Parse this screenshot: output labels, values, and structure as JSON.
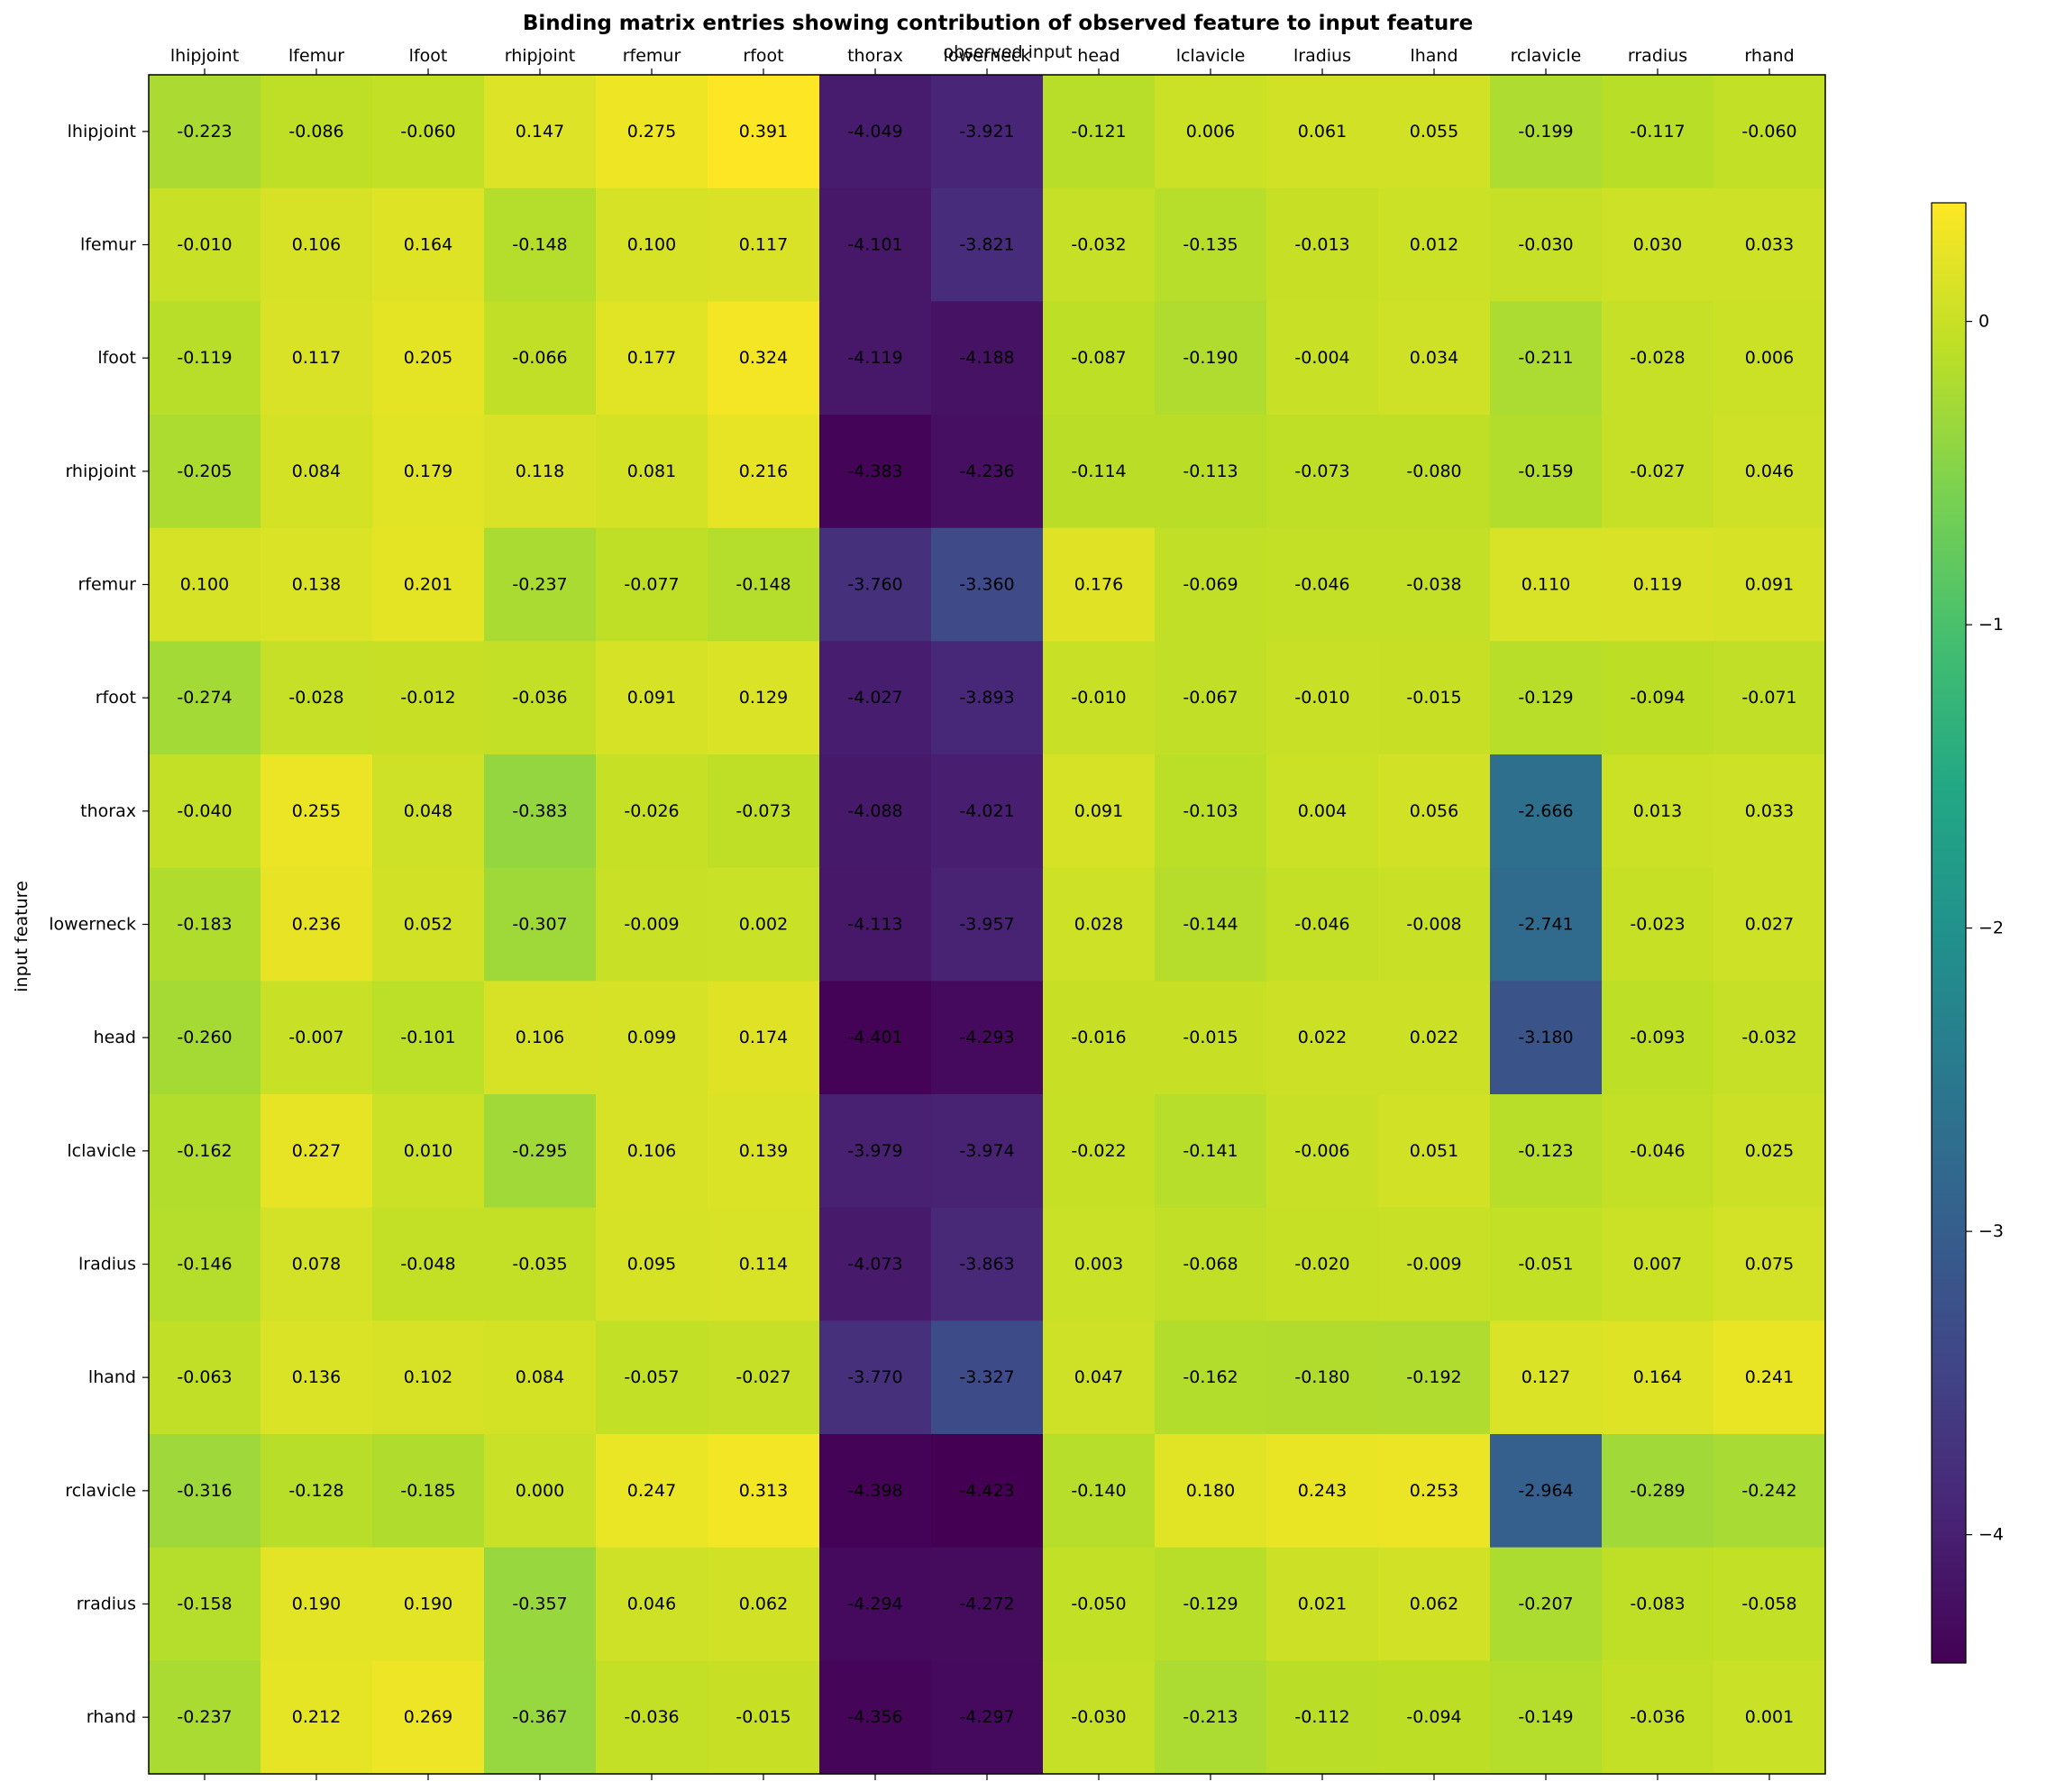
{
  "chart_data": {
    "type": "heatmap",
    "title": "Binding matrix entries showing contribution of observed feature to input feature",
    "xlabel": "observed input",
    "ylabel": "input feature",
    "x_categories": [
      "lhipjoint",
      "lfemur",
      "lfoot",
      "rhipjoint",
      "rfemur",
      "rfoot",
      "thorax",
      "lowerneck",
      "head",
      "lclavicle",
      "lradius",
      "lhand",
      "rclavicle",
      "rradius",
      "rhand"
    ],
    "y_categories": [
      "lhipjoint",
      "lfemur",
      "lfoot",
      "rhipjoint",
      "rfemur",
      "rfoot",
      "thorax",
      "lowerneck",
      "head",
      "lclavicle",
      "lradius",
      "lhand",
      "rclavicle",
      "rradius",
      "rhand"
    ],
    "values": [
      [
        -0.223,
        -0.086,
        -0.06,
        0.147,
        0.275,
        0.391,
        -4.049,
        -3.921,
        -0.121,
        0.006,
        0.061,
        0.055,
        -0.199,
        -0.117,
        -0.06
      ],
      [
        -0.01,
        0.106,
        0.164,
        -0.148,
        0.1,
        0.117,
        -4.101,
        -3.821,
        -0.032,
        -0.135,
        -0.013,
        0.012,
        -0.03,
        0.03,
        0.033
      ],
      [
        -0.119,
        0.117,
        0.205,
        -0.066,
        0.177,
        0.324,
        -4.119,
        -4.188,
        -0.087,
        -0.19,
        -0.004,
        0.034,
        -0.211,
        -0.028,
        0.006
      ],
      [
        -0.205,
        0.084,
        0.179,
        0.118,
        0.081,
        0.216,
        -4.383,
        -4.236,
        -0.114,
        -0.113,
        -0.073,
        -0.08,
        -0.159,
        -0.027,
        0.046
      ],
      [
        0.1,
        0.138,
        0.201,
        -0.237,
        -0.077,
        -0.148,
        -3.76,
        -3.36,
        0.176,
        -0.069,
        -0.046,
        -0.038,
        0.11,
        0.119,
        0.091
      ],
      [
        -0.274,
        -0.028,
        -0.012,
        -0.036,
        0.091,
        0.129,
        -4.027,
        -3.893,
        -0.01,
        -0.067,
        -0.01,
        -0.015,
        -0.129,
        -0.094,
        -0.071
      ],
      [
        -0.04,
        0.255,
        0.048,
        -0.383,
        -0.026,
        -0.073,
        -4.088,
        -4.021,
        0.091,
        -0.103,
        0.004,
        0.056,
        -2.666,
        0.013,
        0.033
      ],
      [
        -0.183,
        0.236,
        0.052,
        -0.307,
        -0.009,
        0.002,
        -4.113,
        -3.957,
        0.028,
        -0.144,
        -0.046,
        -0.008,
        -2.741,
        -0.023,
        0.027
      ],
      [
        -0.26,
        -0.007,
        -0.101,
        0.106,
        0.099,
        0.174,
        -4.401,
        -4.293,
        -0.016,
        -0.015,
        0.022,
        0.022,
        -3.18,
        -0.093,
        -0.032
      ],
      [
        -0.162,
        0.227,
        0.01,
        -0.295,
        0.106,
        0.139,
        -3.979,
        -3.974,
        -0.022,
        -0.141,
        -0.006,
        0.051,
        -0.123,
        -0.046,
        0.025
      ],
      [
        -0.146,
        0.078,
        -0.048,
        -0.035,
        0.095,
        0.114,
        -4.073,
        -3.863,
        0.003,
        -0.068,
        -0.02,
        -0.009,
        -0.051,
        0.007,
        0.075
      ],
      [
        -0.063,
        0.136,
        0.102,
        0.084,
        -0.057,
        -0.027,
        -3.77,
        -3.327,
        0.047,
        -0.162,
        -0.18,
        -0.192,
        0.127,
        0.164,
        0.241
      ],
      [
        -0.316,
        -0.128,
        -0.185,
        0.0,
        0.247,
        0.313,
        -4.398,
        -4.423,
        -0.14,
        0.18,
        0.243,
        0.253,
        -2.964,
        -0.289,
        -0.242
      ],
      [
        -0.158,
        0.19,
        0.19,
        -0.357,
        0.046,
        0.062,
        -4.294,
        -4.272,
        -0.05,
        -0.129,
        0.021,
        0.062,
        -0.207,
        -0.083,
        -0.058
      ],
      [
        -0.237,
        0.212,
        0.269,
        -0.367,
        -0.036,
        -0.015,
        -4.356,
        -4.297,
        -0.03,
        -0.213,
        -0.112,
        -0.094,
        -0.149,
        -0.036,
        0.001
      ]
    ],
    "value_labels": [
      [
        "-0.223",
        "-0.086",
        "-0.060",
        "0.147",
        "0.275",
        "0.391",
        "-4.049",
        "-3.921",
        "-0.121",
        "0.006",
        "0.061",
        "0.055",
        "-0.199",
        "-0.117",
        "-0.060"
      ],
      [
        "-0.010",
        "0.106",
        "0.164",
        "-0.148",
        "0.100",
        "0.117",
        "-4.101",
        "-3.821",
        "-0.032",
        "-0.135",
        "-0.013",
        "0.012",
        "-0.030",
        "0.030",
        "0.033"
      ],
      [
        "-0.119",
        "0.117",
        "0.205",
        "-0.066",
        "0.177",
        "0.324",
        "-4.119",
        "-4.188",
        "-0.087",
        "-0.190",
        "-0.004",
        "0.034",
        "-0.211",
        "-0.028",
        "0.006"
      ],
      [
        "-0.205",
        "0.084",
        "0.179",
        "0.118",
        "0.081",
        "0.216",
        "-4.383",
        "-4.236",
        "-0.114",
        "-0.113",
        "-0.073",
        "-0.080",
        "-0.159",
        "-0.027",
        "0.046"
      ],
      [
        "0.100",
        "0.138",
        "0.201",
        "-0.237",
        "-0.077",
        "-0.148",
        "-3.760",
        "-3.360",
        "0.176",
        "-0.069",
        "-0.046",
        "-0.038",
        "0.110",
        "0.119",
        "0.091"
      ],
      [
        "-0.274",
        "-0.028",
        "-0.012",
        "-0.036",
        "0.091",
        "0.129",
        "-4.027",
        "-3.893",
        "-0.010",
        "-0.067",
        "-0.010",
        "-0.015",
        "-0.129",
        "-0.094",
        "-0.071"
      ],
      [
        "-0.040",
        "0.255",
        "0.048",
        "-0.383",
        "-0.026",
        "-0.073",
        "-4.088",
        "-4.021",
        "0.091",
        "-0.103",
        "0.004",
        "0.056",
        "-2.666",
        "0.013",
        "0.033"
      ],
      [
        "-0.183",
        "0.236",
        "0.052",
        "-0.307",
        "-0.009",
        "0.002",
        "-4.113",
        "-3.957",
        "0.028",
        "-0.144",
        "-0.046",
        "-0.008",
        "-2.741",
        "-0.023",
        "0.027"
      ],
      [
        "-0.260",
        "-0.007",
        "-0.101",
        "0.106",
        "0.099",
        "0.174",
        "-4.401",
        "-4.293",
        "-0.016",
        "-0.015",
        "0.022",
        "0.022",
        "-3.180",
        "-0.093",
        "-0.032"
      ],
      [
        "-0.162",
        "0.227",
        "0.010",
        "-0.295",
        "0.106",
        "0.139",
        "-3.979",
        "-3.974",
        "-0.022",
        "-0.141",
        "-0.006",
        "0.051",
        "-0.123",
        "-0.046",
        "0.025"
      ],
      [
        "-0.146",
        "0.078",
        "-0.048",
        "-0.035",
        "0.095",
        "0.114",
        "-4.073",
        "-3.863",
        "0.003",
        "-0.068",
        "-0.020",
        "-0.009",
        "-0.051",
        "0.007",
        "0.075"
      ],
      [
        "-0.063",
        "0.136",
        "0.102",
        "0.084",
        "-0.057",
        "-0.027",
        "-3.770",
        "-3.327",
        "0.047",
        "-0.162",
        "-0.180",
        "-0.192",
        "0.127",
        "0.164",
        "0.241"
      ],
      [
        "-0.316",
        "-0.128",
        "-0.185",
        "0.000",
        "0.247",
        "0.313",
        "-4.398",
        "-4.423",
        "-0.140",
        "0.180",
        "0.243",
        "0.253",
        "-2.964",
        "-0.289",
        "-0.242"
      ],
      [
        "-0.158",
        "0.190",
        "0.190",
        "-0.357",
        "0.046",
        "0.062",
        "-4.294",
        "-4.272",
        "-0.050",
        "-0.129",
        "0.021",
        "0.062",
        "-0.207",
        "-0.083",
        "-0.058"
      ],
      [
        "-0.237",
        "0.212",
        "0.269",
        "-0.367",
        "-0.036",
        "-0.015",
        "-4.356",
        "-4.297",
        "-0.030",
        "-0.213",
        "-0.112",
        "-0.094",
        "-0.149",
        "-0.036",
        "0.001"
      ]
    ],
    "colormap": "viridis",
    "vmin": -4.423,
    "vmax": 0.391,
    "colorbar_ticks": [
      0,
      -1,
      -2,
      -3,
      -4
    ],
    "colorbar_tick_labels": [
      "0",
      "−1",
      "−2",
      "−3",
      "−4"
    ],
    "x_axis_position": "top",
    "legend": "colorbar-right",
    "grid": false
  }
}
